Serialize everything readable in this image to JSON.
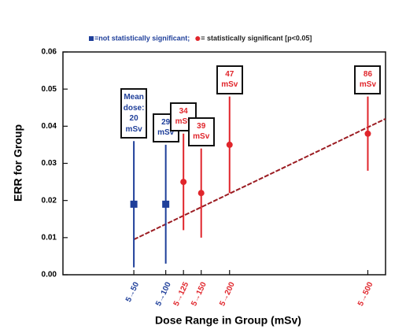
{
  "chart_data": {
    "type": "errorbar",
    "xlabel": "Dose Range in Group (mSv)",
    "ylabel": "ERR for Group",
    "xlim": [
      0,
      91
    ],
    "ylim": [
      0,
      0.06
    ],
    "xticks": [
      {
        "value": 20,
        "label": "5→50"
      },
      {
        "value": 29,
        "label": "5→100"
      },
      {
        "value": 34,
        "label": "5→125"
      },
      {
        "value": 39,
        "label": "5→150"
      },
      {
        "value": 47,
        "label": "5→200"
      },
      {
        "value": 86,
        "label": "5→500"
      }
    ],
    "yticks": [
      {
        "value": 0,
        "label": "0.00"
      },
      {
        "value": 0.01,
        "label": "0.01"
      },
      {
        "value": 0.02,
        "label": "0.02"
      },
      {
        "value": 0.03,
        "label": "0.03"
      },
      {
        "value": 0.04,
        "label": "0.04"
      },
      {
        "value": 0.05,
        "label": "0.05"
      },
      {
        "value": 0.06,
        "label": "0.06"
      }
    ],
    "series": [
      {
        "name": "=not statistically significant;",
        "color": "#1f3f9a",
        "marker": "square",
        "x": [
          20,
          29
        ],
        "values": [
          0.019,
          0.019
        ],
        "lower": [
          0.002,
          0.003
        ],
        "upper": [
          0.036,
          0.035
        ],
        "annotations": [
          "Mean dose: 20 mSv",
          "29 mSv"
        ]
      },
      {
        "name": "= statistically significant [p<0.05]",
        "color": "#e0252b",
        "marker": "circle",
        "x": [
          34,
          39,
          47,
          86
        ],
        "values": [
          0.025,
          0.022,
          0.035,
          0.038
        ],
        "lower": [
          0.012,
          0.01,
          0.022,
          0.028
        ],
        "upper": [
          0.038,
          0.034,
          0.048,
          0.048
        ],
        "annotations": [
          "34 mSv",
          "39 mSv",
          "47 mSv",
          "86 mSv"
        ]
      }
    ],
    "trend": {
      "x": [
        20,
        91
      ],
      "y": [
        0.0095,
        0.042
      ],
      "color": "#9b1c22"
    }
  }
}
